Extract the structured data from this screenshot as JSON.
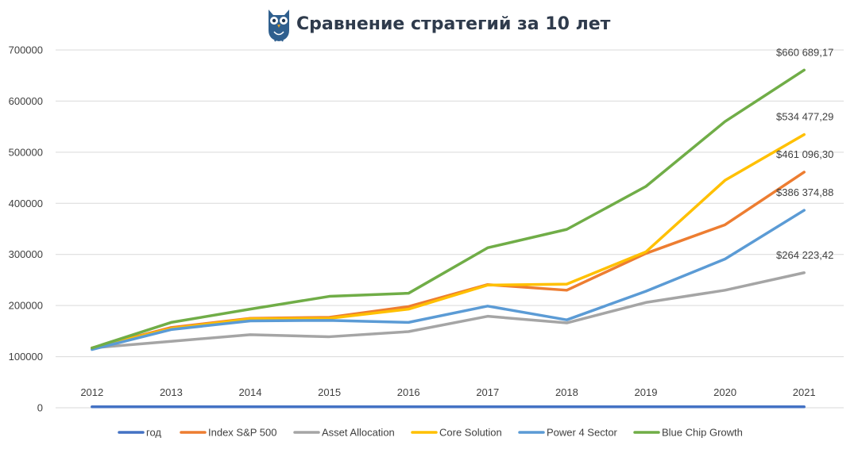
{
  "chart_data": {
    "type": "line",
    "title": "Сравнение стратегий за 10 лет",
    "xlabel": "",
    "ylabel": "",
    "ylim": [
      0,
      700000
    ],
    "yticks": [
      0,
      100000,
      200000,
      300000,
      400000,
      500000,
      600000,
      700000
    ],
    "ytick_labels": [
      "0",
      "100000",
      "200000",
      "300000",
      "400000",
      "500000",
      "600000",
      "700000"
    ],
    "categories": [
      "2012",
      "2013",
      "2014",
      "2015",
      "2016",
      "2017",
      "2018",
      "2019",
      "2020",
      "2021"
    ],
    "grid": true,
    "legend_position": "bottom",
    "logo_icon": "owl-icon",
    "series": [
      {
        "name": "год",
        "color": "#4472c4",
        "values": [
          2012,
          2013,
          2014,
          2015,
          2016,
          2017,
          2018,
          2019,
          2020,
          2021
        ]
      },
      {
        "name": "Index S&P 500",
        "color": "#ed7d31",
        "values": [
          117000,
          157000,
          175000,
          177000,
          198000,
          241000,
          230000,
          302000,
          358000,
          461096.3
        ],
        "end_label": "$461 096,30"
      },
      {
        "name": "Asset Allocation",
        "color": "#a5a5a5",
        "values": [
          117000,
          130000,
          143000,
          139000,
          149000,
          179000,
          166000,
          206000,
          230000,
          264223.42
        ],
        "end_label": "$264 223,42"
      },
      {
        "name": "Core Solution",
        "color": "#ffc000",
        "values": [
          117000,
          155000,
          174000,
          175000,
          193000,
          240000,
          242000,
          305000,
          445000,
          534477.29
        ],
        "end_label": "$534 477,29"
      },
      {
        "name": "Power 4 Sector",
        "color": "#5b9bd5",
        "values": [
          114000,
          153000,
          170000,
          171000,
          167000,
          199000,
          172000,
          228000,
          291000,
          386374.88
        ],
        "end_label": "$386 374,88"
      },
      {
        "name": "Blue Chip Growth",
        "color": "#70ad47",
        "values": [
          117000,
          167000,
          193000,
          218000,
          224000,
          313000,
          349000,
          433000,
          560000,
          660689.17
        ],
        "end_label": "$660 689,17"
      }
    ]
  }
}
